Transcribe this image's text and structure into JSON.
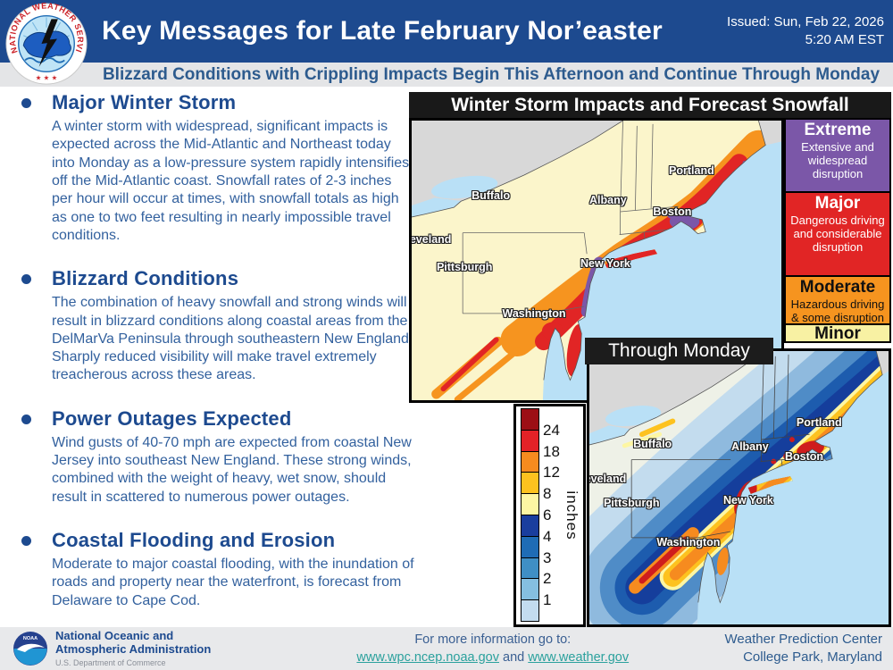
{
  "header": {
    "title": "Key Messages for Late February Nor’easter",
    "issued_line1": "Issued: Sun, Feb 22, 2026",
    "issued_line2": "5:20 AM EST",
    "nws_logo_ring_text": "NATIONAL WEATHER SERVICE",
    "nws_logo_stars": "★ ★ ★"
  },
  "subtitle": "Blizzard Conditions with Crippling Impacts Begin This Afternoon and Continue Through Monday",
  "key_messages": [
    {
      "heading": "Major Winter Storm",
      "body": "A winter storm with widespread, significant impacts is expected across the Mid-Atlantic and Northeast today into Monday as a low-pressure system rapidly intensifies off the Mid-Atlantic coast. Snowfall rates of 2-3 inches per hour will occur at times, with snowfall totals as high as one to two feet resulting in nearly impossible travel conditions."
    },
    {
      "heading": "Blizzard Conditions",
      "body": "The combination of heavy snowfall and strong winds will result in blizzard conditions along coastal areas from the DelMarVa Peninsula through southeastern New England. Sharply reduced visibility will make travel extremely treacherous across these areas."
    },
    {
      "heading": "Power Outages Expected",
      "body": "Wind gusts of 40-70 mph are expected from coastal New Jersey into southeast New England. These strong winds, combined with the weight of heavy, wet snow, should result in scattered to numerous power outages."
    },
    {
      "heading": "Coastal Flooding and Erosion",
      "body": "Moderate to major coastal flooding, with the inundation of roads and property near the waterfront, is forecast from Delaware to Cape Cod."
    }
  ],
  "map_panel": {
    "title": "Winter Storm Impacts and Forecast Snowfall",
    "through_label": "Through Monday",
    "impact_legend": [
      {
        "level": "Extreme",
        "desc": "Extensive and widespread disruption",
        "bg": "#7b57a8",
        "fg": "#ffffff"
      },
      {
        "level": "Major",
        "desc": "Dangerous driving and considerable disruption",
        "bg": "#e12525",
        "fg": "#ffffff"
      },
      {
        "level": "Moderate",
        "desc": "Hazardous driving & some disruption",
        "bg": "#f6941f",
        "fg": "#111111"
      },
      {
        "level": "Minor",
        "desc": "",
        "bg": "#f8f1a3",
        "fg": "#111111"
      }
    ],
    "impacts_map_cities": [
      {
        "name": "Cleveland",
        "x": "3.6%",
        "y": "42.5%"
      },
      {
        "name": "Buffalo",
        "x": "21.4%",
        "y": "26.8%"
      },
      {
        "name": "Albany",
        "x": "53.1%",
        "y": "28.5%"
      },
      {
        "name": "Boston",
        "x": "70.5%",
        "y": "32.5%"
      },
      {
        "name": "Portland",
        "x": "75.7%",
        "y": "17.8%"
      },
      {
        "name": "New York",
        "x": "52.4%",
        "y": "51.0%"
      },
      {
        "name": "Pittsburgh",
        "x": "14.3%",
        "y": "52.5%"
      },
      {
        "name": "Washington",
        "x": "33.1%",
        "y": "69.0%"
      }
    ],
    "snowfall_map_cities": [
      {
        "name": "Cleveland",
        "x": "3.5%",
        "y": "46.8%"
      },
      {
        "name": "Buffalo",
        "x": "21.1%",
        "y": "34.0%"
      },
      {
        "name": "Albany",
        "x": "53.7%",
        "y": "34.9%"
      },
      {
        "name": "Boston",
        "x": "71.8%",
        "y": "38.5%"
      },
      {
        "name": "Portland",
        "x": "76.8%",
        "y": "26.0%"
      },
      {
        "name": "New York",
        "x": "53.1%",
        "y": "54.5%"
      },
      {
        "name": "Pittsburgh",
        "x": "14.1%",
        "y": "55.4%"
      },
      {
        "name": "Washington",
        "x": "33.1%",
        "y": "69.9%"
      }
    ],
    "colorbar": {
      "unit_label": "inches",
      "tick_labels": [
        "24",
        "18",
        "12",
        "8",
        "6",
        "4",
        "3",
        "2",
        "1"
      ],
      "colors": [
        "#9c0f15",
        "#e32227",
        "#f68b1f",
        "#fdc21f",
        "#fdf6a3",
        "#1a3e9e",
        "#1f6cb5",
        "#3f8fc5",
        "#85bfe0",
        "#c3dcef"
      ]
    }
  },
  "footer": {
    "noaa_logo_text": "NOAA",
    "agency_line1": "National Oceanic and",
    "agency_line2": "Atmospheric Administration",
    "agency_sub": "U.S. Department of Commerce",
    "info_label": "For more information go to:",
    "link1": "www.wpc.ncep.noaa.gov",
    "link_joiner": "and",
    "link2": "www.weather.gov",
    "org_line1": "Weather Prediction Center",
    "org_line2": "College Park, Maryland"
  },
  "colors": {
    "header_blue": "#1d4a8f",
    "body_blue": "#33619e",
    "link_teal": "#2ba19d",
    "water_blue": "#b9e0f6",
    "minor_yellow": "#fbf5cb"
  }
}
